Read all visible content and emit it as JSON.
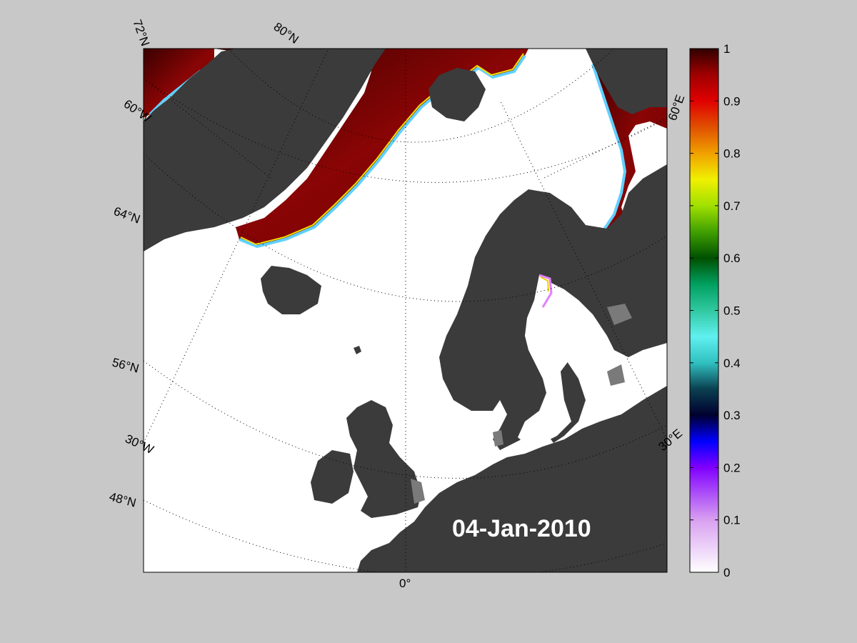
{
  "map": {
    "date_label": "04-Jan-2010",
    "colors": {
      "background": "#c8c8c8",
      "ocean_open_water": "#ffffff",
      "land": "#3b3b3b",
      "lake_land_gray": "#7a7a7a",
      "ice_full": "#7a0000",
      "ice_dark": "#3a0000",
      "graticule": "#000000"
    },
    "graticule_labels": {
      "lat_72": "72°N",
      "lat_80": "80°N",
      "lat_60w_lon": "60°W",
      "lat_64": "64°N",
      "lat_56": "56°N",
      "lon_30w": "30°W",
      "lat_48": "48°N",
      "lon_0": "0°",
      "lon_30e": "30°E",
      "lon_60e": "60°E"
    }
  },
  "colorbar": {
    "ticks": [
      "1",
      "0.9",
      "0.8",
      "0.7",
      "0.6",
      "0.5",
      "0.4",
      "0.3",
      "0.2",
      "0.1",
      "0"
    ],
    "stops": [
      {
        "v": 0.0,
        "c": "#ffffff"
      },
      {
        "v": 0.1,
        "c": "#d8a0f0"
      },
      {
        "v": 0.2,
        "c": "#8000ff"
      },
      {
        "v": 0.25,
        "c": "#0000ff"
      },
      {
        "v": 0.3,
        "c": "#000030"
      },
      {
        "v": 0.35,
        "c": "#0a4050"
      },
      {
        "v": 0.4,
        "c": "#30c0c0"
      },
      {
        "v": 0.45,
        "c": "#60f0f0"
      },
      {
        "v": 0.5,
        "c": "#30c8a0"
      },
      {
        "v": 0.55,
        "c": "#00a060"
      },
      {
        "v": 0.6,
        "c": "#005000"
      },
      {
        "v": 0.65,
        "c": "#40a000"
      },
      {
        "v": 0.7,
        "c": "#a0e000"
      },
      {
        "v": 0.75,
        "c": "#f0f000"
      },
      {
        "v": 0.8,
        "c": "#f0a000"
      },
      {
        "v": 0.85,
        "c": "#e05000"
      },
      {
        "v": 0.9,
        "c": "#e00000"
      },
      {
        "v": 0.95,
        "c": "#a00000"
      },
      {
        "v": 1.0,
        "c": "#300000"
      }
    ]
  }
}
